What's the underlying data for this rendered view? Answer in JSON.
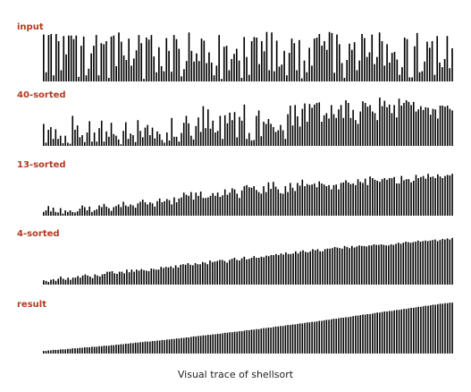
{
  "label_color": "#b23a20",
  "bar_color": "#000000",
  "panels": [
    {
      "label": "input",
      "values": [
        0.92,
        0.18,
        0.91,
        0.93,
        0.12,
        0.93,
        0.79,
        0.22,
        0.89,
        0.53,
        0.9,
        0.9,
        0.83,
        0.9,
        0.09,
        0.7,
        0.88,
        0.12,
        0.25,
        0.55,
        0.7,
        0.91,
        0.12,
        0.75,
        0.73,
        0.79,
        0.07,
        0.88,
        0.9,
        0.3,
        0.96,
        0.78,
        0.51,
        0.42,
        0.84,
        0.31,
        0.45,
        0.61,
        0.91,
        0.75,
        0.05,
        0.86,
        0.82,
        0.91,
        0.49,
        0.18,
        0.67,
        0.3,
        0.2,
        0.85,
        0.6,
        0.19,
        0.91,
        0.83,
        0.64,
        0.1,
        0.24,
        0.4,
        0.96,
        0.6,
        0.39,
        0.55,
        0.4,
        0.84,
        0.8,
        0.36,
        0.57,
        0.37,
        0.12,
        0.31,
        0.91,
        0.05,
        0.68,
        0.7,
        0.22,
        0.44,
        0.54,
        0.64,
        0.41,
        0.07,
        0.87,
        0.48,
        0.13,
        0.79,
        0.87,
        0.86,
        0.34,
        0.79,
        0.59,
        0.97,
        0.22,
        0.96,
        0.2,
        0.8,
        0.29,
        0.33,
        0.6,
        0.12,
        0.56,
        0.84,
        0.75,
        0.22,
        0.81,
        0.06,
        0.41,
        0.18,
        0.66,
        0.31,
        0.84,
        0.86,
        0.93,
        0.7,
        0.79,
        0.62,
        0.97,
        0.95,
        0.17,
        0.92,
        0.73,
        0.36,
        0.07,
        0.42,
        0.74,
        0.62,
        0.77,
        0.22,
        0.41,
        0.93,
        0.85,
        0.48,
        0.57,
        0.92,
        0.34,
        0.48,
        0.96,
        0.79,
        0.31,
        0.73,
        0.37,
        0.56,
        0.58,
        0.43,
        0.13,
        0.28,
        0.86,
        0.83,
        0.08,
        0.08,
        0.69,
        0.95,
        0.18,
        0.2,
        0.39,
        0.78,
        0.66,
        0.79,
        0.13,
        0.89,
        0.37,
        0.28,
        0.44,
        0.89,
        0.26,
        0.65
      ]
    },
    {
      "label": "40-sorted",
      "values": [
        0.41,
        0.06,
        0.3,
        0.35,
        0.13,
        0.31,
        0.13,
        0.19,
        0.05,
        0.19,
        0.06,
        0.04,
        0.56,
        0.3,
        0.38,
        0.16,
        0.2,
        0.07,
        0.25,
        0.46,
        0.08,
        0.25,
        0.08,
        0.33,
        0.47,
        0.08,
        0.27,
        0.17,
        0.43,
        0.22,
        0.19,
        0.12,
        0.03,
        0.28,
        0.44,
        0.13,
        0.23,
        0.2,
        0.07,
        0.48,
        0.28,
        0.16,
        0.34,
        0.39,
        0.2,
        0.34,
        0.14,
        0.27,
        0.22,
        0.11,
        0.06,
        0.25,
        0.1,
        0.52,
        0.17,
        0.17,
        0.08,
        0.24,
        0.43,
        0.56,
        0.42,
        0.19,
        0.12,
        0.37,
        0.53,
        0.26,
        0.74,
        0.33,
        0.68,
        0.32,
        0.47,
        0.25,
        0.28,
        0.56,
        0.13,
        0.57,
        0.42,
        0.62,
        0.48,
        0.63,
        0.16,
        0.54,
        0.47,
        0.77,
        0.13,
        0.24,
        0.1,
        0.11,
        0.56,
        0.66,
        0.18,
        0.45,
        0.41,
        0.5,
        0.41,
        0.35,
        0.26,
        0.29,
        0.39,
        0.29,
        0.13,
        0.59,
        0.75,
        0.38,
        0.76,
        0.55,
        0.36,
        0.69,
        0.79,
        0.45,
        0.78,
        0.71,
        0.77,
        0.8,
        0.81,
        0.45,
        0.57,
        0.61,
        0.51,
        0.76,
        0.59,
        0.52,
        0.68,
        0.76,
        0.52,
        0.85,
        0.8,
        0.52,
        0.67,
        0.48,
        0.41,
        0.64,
        0.83,
        0.8,
        0.73,
        0.76,
        0.64,
        0.61,
        0.48,
        0.9,
        0.74,
        0.84,
        0.72,
        0.77,
        0.61,
        0.76,
        0.53,
        0.88,
        0.75,
        0.8,
        0.85,
        0.82,
        0.76,
        0.82,
        0.64,
        0.68,
        0.74,
        0.67,
        0.72,
        0.71,
        0.58,
        0.69,
        0.68,
        0.51,
        0.75,
        0.75,
        0.73,
        0.75,
        0.69,
        0.66
      ]
    },
    {
      "label": "13-sorted",
      "values": [
        0.07,
        0.1,
        0.18,
        0.08,
        0.15,
        0.07,
        0.06,
        0.14,
        0.04,
        0.1,
        0.07,
        0.1,
        0.07,
        0.06,
        0.08,
        0.13,
        0.19,
        0.16,
        0.1,
        0.17,
        0.07,
        0.1,
        0.12,
        0.19,
        0.16,
        0.22,
        0.17,
        0.14,
        0.09,
        0.16,
        0.18,
        0.21,
        0.16,
        0.26,
        0.19,
        0.17,
        0.21,
        0.19,
        0.15,
        0.23,
        0.26,
        0.3,
        0.25,
        0.21,
        0.25,
        0.23,
        0.17,
        0.27,
        0.32,
        0.25,
        0.27,
        0.31,
        0.29,
        0.21,
        0.34,
        0.25,
        0.32,
        0.34,
        0.43,
        0.39,
        0.37,
        0.44,
        0.3,
        0.43,
        0.37,
        0.45,
        0.33,
        0.33,
        0.34,
        0.37,
        0.42,
        0.37,
        0.43,
        0.35,
        0.38,
        0.49,
        0.39,
        0.43,
        0.51,
        0.49,
        0.41,
        0.33,
        0.47,
        0.55,
        0.57,
        0.53,
        0.52,
        0.55,
        0.48,
        0.44,
        0.41,
        0.55,
        0.44,
        0.62,
        0.5,
        0.63,
        0.54,
        0.49,
        0.42,
        0.41,
        0.55,
        0.44,
        0.61,
        0.52,
        0.46,
        0.61,
        0.56,
        0.67,
        0.55,
        0.59,
        0.57,
        0.58,
        0.6,
        0.53,
        0.64,
        0.6,
        0.58,
        0.55,
        0.57,
        0.49,
        0.57,
        0.58,
        0.49,
        0.61,
        0.62,
        0.66,
        0.62,
        0.59,
        0.6,
        0.57,
        0.68,
        0.63,
        0.61,
        0.69,
        0.57,
        0.73,
        0.7,
        0.67,
        0.65,
        0.63,
        0.68,
        0.7,
        0.67,
        0.7,
        0.7,
        0.72,
        0.6,
        0.6,
        0.74,
        0.66,
        0.68,
        0.68,
        0.62,
        0.65,
        0.76,
        0.7,
        0.72,
        0.74,
        0.69,
        0.78,
        0.72,
        0.73,
        0.7,
        0.77,
        0.73,
        0.7,
        0.74,
        0.76,
        0.75,
        0.78
      ]
    },
    {
      "label": "4-sorted",
      "values": [
        0.08,
        0.07,
        0.05,
        0.09,
        0.1,
        0.07,
        0.11,
        0.15,
        0.11,
        0.09,
        0.13,
        0.09,
        0.13,
        0.13,
        0.16,
        0.13,
        0.17,
        0.19,
        0.17,
        0.15,
        0.12,
        0.19,
        0.17,
        0.15,
        0.19,
        0.2,
        0.24,
        0.24,
        0.25,
        0.21,
        0.2,
        0.24,
        0.24,
        0.21,
        0.28,
        0.23,
        0.28,
        0.24,
        0.28,
        0.26,
        0.29,
        0.27,
        0.26,
        0.25,
        0.3,
        0.29,
        0.28,
        0.28,
        0.33,
        0.31,
        0.33,
        0.32,
        0.34,
        0.31,
        0.36,
        0.32,
        0.37,
        0.38,
        0.37,
        0.4,
        0.37,
        0.36,
        0.4,
        0.38,
        0.38,
        0.42,
        0.41,
        0.38,
        0.45,
        0.42,
        0.43,
        0.44,
        0.46,
        0.46,
        0.44,
        0.41,
        0.46,
        0.48,
        0.5,
        0.46,
        0.45,
        0.49,
        0.52,
        0.47,
        0.48,
        0.5,
        0.53,
        0.5,
        0.5,
        0.52,
        0.51,
        0.54,
        0.53,
        0.55,
        0.55,
        0.57,
        0.55,
        0.58,
        0.56,
        0.6,
        0.57,
        0.57,
        0.58,
        0.62,
        0.58,
        0.62,
        0.64,
        0.61,
        0.6,
        0.62,
        0.66,
        0.64,
        0.66,
        0.62,
        0.62,
        0.66,
        0.67,
        0.67,
        0.68,
        0.7,
        0.69,
        0.68,
        0.67,
        0.72,
        0.7,
        0.68,
        0.72,
        0.69,
        0.71,
        0.73,
        0.72,
        0.72,
        0.71,
        0.73,
        0.73,
        0.75,
        0.74,
        0.74,
        0.75,
        0.74,
        0.73,
        0.73,
        0.75,
        0.74,
        0.76,
        0.78,
        0.76,
        0.78,
        0.8,
        0.79,
        0.78,
        0.79,
        0.8,
        0.82,
        0.8,
        0.81,
        0.82,
        0.81,
        0.82,
        0.83,
        0.84,
        0.81,
        0.83,
        0.85,
        0.84,
        0.86,
        0.84,
        0.87
      ]
    },
    {
      "label": "result",
      "values": [
        0.05,
        0.05,
        0.06,
        0.06,
        0.07,
        0.07,
        0.07,
        0.08,
        0.08,
        0.08,
        0.09,
        0.09,
        0.1,
        0.1,
        0.1,
        0.11,
        0.11,
        0.12,
        0.12,
        0.12,
        0.13,
        0.13,
        0.13,
        0.14,
        0.14,
        0.15,
        0.15,
        0.15,
        0.16,
        0.16,
        0.17,
        0.17,
        0.18,
        0.18,
        0.19,
        0.19,
        0.2,
        0.2,
        0.21,
        0.21,
        0.22,
        0.22,
        0.23,
        0.23,
        0.23,
        0.24,
        0.24,
        0.25,
        0.25,
        0.26,
        0.26,
        0.27,
        0.27,
        0.28,
        0.28,
        0.29,
        0.29,
        0.3,
        0.3,
        0.31,
        0.31,
        0.32,
        0.33,
        0.33,
        0.34,
        0.34,
        0.35,
        0.35,
        0.36,
        0.36,
        0.37,
        0.37,
        0.38,
        0.38,
        0.39,
        0.4,
        0.4,
        0.41,
        0.41,
        0.42,
        0.42,
        0.43,
        0.43,
        0.44,
        0.45,
        0.45,
        0.46,
        0.46,
        0.47,
        0.47,
        0.48,
        0.49,
        0.49,
        0.5,
        0.5,
        0.51,
        0.52,
        0.52,
        0.53,
        0.53,
        0.54,
        0.55,
        0.55,
        0.56,
        0.56,
        0.57,
        0.58,
        0.58,
        0.59,
        0.6,
        0.6,
        0.61,
        0.61,
        0.62,
        0.63,
        0.63,
        0.64,
        0.65,
        0.65,
        0.66,
        0.67,
        0.67,
        0.68,
        0.69,
        0.69,
        0.7,
        0.7,
        0.71,
        0.72,
        0.73,
        0.73,
        0.74,
        0.75,
        0.75,
        0.76,
        0.76,
        0.77,
        0.78,
        0.79,
        0.79,
        0.8,
        0.81,
        0.81,
        0.82,
        0.82,
        0.83,
        0.84,
        0.84,
        0.85,
        0.86,
        0.86,
        0.87,
        0.88,
        0.88,
        0.89,
        0.9,
        0.9,
        0.91,
        0.92,
        0.92,
        0.93,
        0.94,
        0.94,
        0.95,
        0.96,
        0.96,
        0.97,
        0.97,
        0.98,
        0.98
      ]
    }
  ],
  "caption": "Visual trace of shellsort"
}
